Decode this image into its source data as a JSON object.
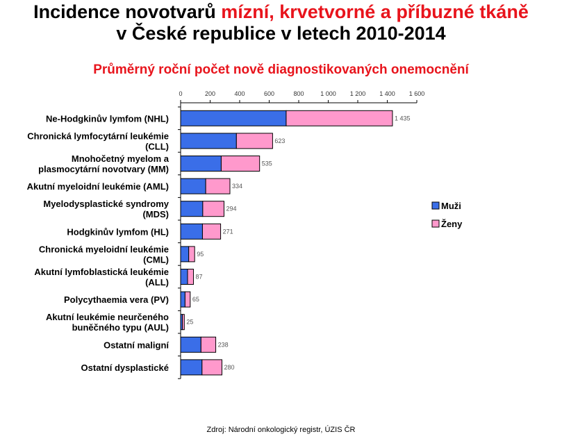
{
  "title": {
    "line1_prefix": "Incidence novotvarů ",
    "line1_highlight": "mízní, krvetvorné a příbuzné tkáně",
    "line2": "v České republice v letech 2010-2014"
  },
  "subtitle": "Průměrný roční počet nově diagnostikovaných onemocnění",
  "source": "Zdroj: Národní onkologický registr, ÚZIS ČR",
  "colors": {
    "muzi": "#3a6ee8",
    "zeny": "#ff99cc",
    "highlight": "#e8141c"
  },
  "chart_data": {
    "type": "bar",
    "orientation": "horizontal",
    "stacked": true,
    "xlim": [
      0,
      1600
    ],
    "ticks": [
      {
        "value": 0,
        "label": "0"
      },
      {
        "value": 200,
        "label": "200"
      },
      {
        "value": 400,
        "label": "400"
      },
      {
        "value": 600,
        "label": "600"
      },
      {
        "value": 800,
        "label": "800"
      },
      {
        "value": 1000,
        "label": "1 000"
      },
      {
        "value": 1200,
        "label": "1 200"
      },
      {
        "value": 1400,
        "label": "1 400"
      },
      {
        "value": 1600,
        "label": "1 600"
      }
    ],
    "categories": [
      [
        "Ne-Hodgkinův lymfom (NHL)"
      ],
      [
        "Chronická lymfocytární leukémie",
        "(CLL)"
      ],
      [
        "Mnohočetný myelom a",
        "plasmocytární novotvary (MM)"
      ],
      [
        "Akutní myeloidní leukémie (AML)"
      ],
      [
        "Myelodysplastické syndromy",
        "(MDS)"
      ],
      [
        "Hodgkinův lymfom (HL)"
      ],
      [
        "Chronická myeloidní leukémie",
        "(CML)"
      ],
      [
        "Akutní lymfoblastická leukémie",
        "(ALL)"
      ],
      [
        "Polycythaemia vera (PV)"
      ],
      [
        "Akutní leukémie neurčeného",
        "buněčného typu (AUL)"
      ],
      [
        "Ostatní maligní"
      ],
      [
        "Ostatní dysplastické"
      ]
    ],
    "series": [
      {
        "name": "Muži",
        "color": "#3a6ee8",
        "values": [
          715,
          378,
          275,
          170,
          150,
          148,
          55,
          47,
          30,
          12,
          138,
          145
        ]
      },
      {
        "name": "Ženy",
        "color": "#ff99cc",
        "values": [
          720,
          245,
          260,
          164,
          144,
          123,
          40,
          40,
          35,
          13,
          100,
          135
        ]
      }
    ],
    "totals": [
      1435,
      623,
      535,
      334,
      294,
      271,
      95,
      87,
      65,
      25,
      238,
      280
    ],
    "total_labels": [
      "1 435",
      "623",
      "535",
      "334",
      "294",
      "271",
      "95",
      "87",
      "65",
      "25",
      "238",
      "280"
    ],
    "legend": {
      "position": "right",
      "entries": [
        "Muži",
        "Ženy"
      ]
    },
    "grid": false
  }
}
